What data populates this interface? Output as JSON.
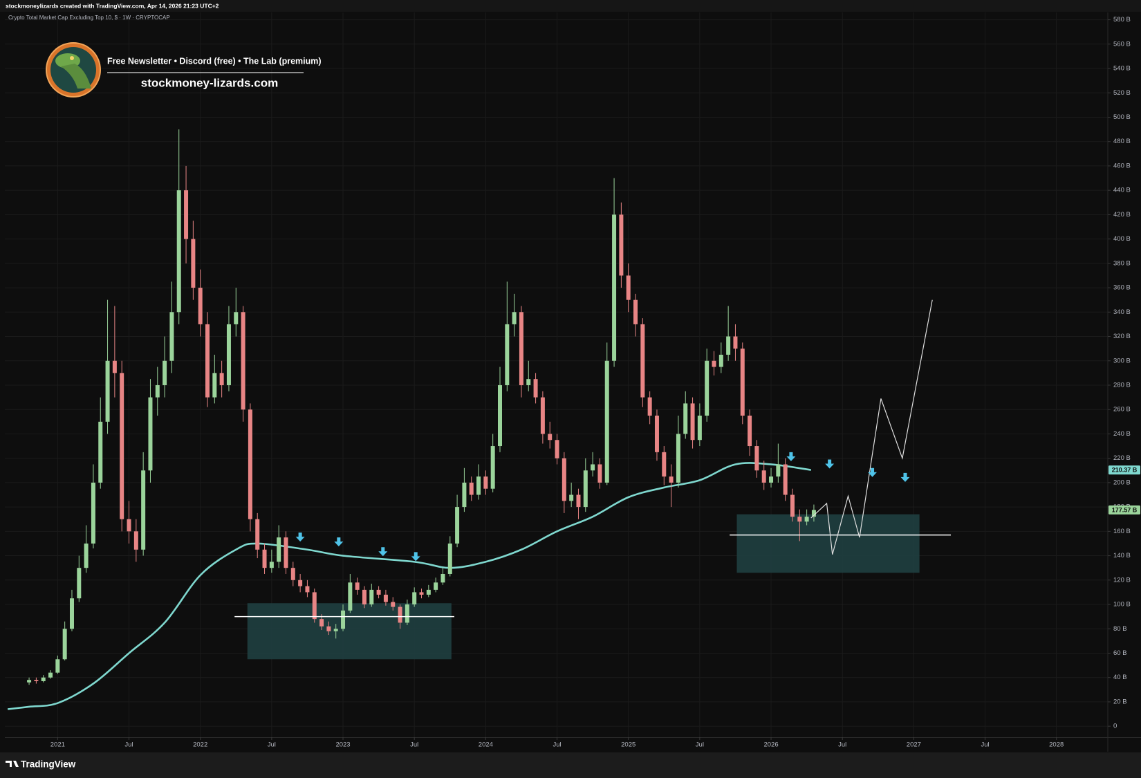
{
  "header": "stockmoneylizards created with TradingView.com, Apr 14, 2026 21:23 UTC+2",
  "banner": {
    "tagline": "Free Newsletter • Discord (free) • The Lab (premium)",
    "site": "stockmoney-lizards.com"
  },
  "footer": "TradingView",
  "chart_data": {
    "type": "candlestick",
    "title": "Crypto Total Market Cap Excluding Top 10, $ · 1W · CRYPTOCAP",
    "up_color": "#9bd49b",
    "down_color": "#e88585",
    "grid": true,
    "xlim": [
      2020.63,
      2028.36
    ],
    "ylim": [
      -9,
      586
    ],
    "xticks": [
      2021,
      {
        "value": 2021.5,
        "label": "Jul"
      },
      2022,
      {
        "value": 2022.5,
        "label": "Jul"
      },
      2023,
      {
        "value": 2023.5,
        "label": "Jul"
      },
      2024,
      {
        "value": 2024.5,
        "label": "Jul"
      },
      2025,
      {
        "value": 2025.5,
        "label": "Jul"
      },
      2026,
      {
        "value": 2026.5,
        "label": "Jul"
      },
      2027,
      {
        "value": 2027.5,
        "label": "Jul"
      },
      2028
    ],
    "yticks": [
      0,
      {
        "value": 20,
        "label": "20 B"
      },
      {
        "value": 40,
        "label": "40 B"
      },
      {
        "value": 60,
        "label": "60 B"
      },
      {
        "value": 80,
        "label": "80 B"
      },
      {
        "value": 100,
        "label": "100 B"
      },
      {
        "value": 120,
        "label": "120 B"
      },
      {
        "value": 140,
        "label": "140 B"
      },
      {
        "value": 160,
        "label": "160 B"
      },
      {
        "value": 180,
        "label": "180 B"
      },
      {
        "value": 200,
        "label": "200 B"
      },
      {
        "value": 220,
        "label": "220 B"
      },
      {
        "value": 240,
        "label": "240 B"
      },
      {
        "value": 260,
        "label": "260 B"
      },
      {
        "value": 280,
        "label": "280 B"
      },
      {
        "value": 300,
        "label": "300 B"
      },
      {
        "value": 320,
        "label": "320 B"
      },
      {
        "value": 340,
        "label": "340 B"
      },
      {
        "value": 360,
        "label": "360 B"
      },
      {
        "value": 380,
        "label": "380 B"
      },
      {
        "value": 400,
        "label": "400 B"
      },
      {
        "value": 420,
        "label": "420 B"
      },
      {
        "value": 440,
        "label": "440 B"
      },
      {
        "value": 460,
        "label": "460 B"
      },
      {
        "value": 480,
        "label": "480 B"
      },
      {
        "value": 500,
        "label": "500 B"
      },
      {
        "value": 520,
        "label": "520 B"
      },
      {
        "value": 540,
        "label": "540 B"
      },
      {
        "value": 560,
        "label": "560 B"
      },
      {
        "value": 580,
        "label": "580 B"
      }
    ],
    "x": [
      2020.8,
      2020.85,
      2020.9,
      2020.95,
      2021,
      2021.05,
      2021.1,
      2021.15,
      2021.2,
      2021.25,
      2021.3,
      2021.35,
      2021.4,
      2021.45,
      2021.5,
      2021.55,
      2021.6,
      2021.65,
      2021.7,
      2021.75,
      2021.8,
      2021.85,
      2021.9,
      2021.95,
      2022,
      2022.05,
      2022.1,
      2022.15,
      2022.2,
      2022.25,
      2022.3,
      2022.35,
      2022.4,
      2022.45,
      2022.5,
      2022.55,
      2022.6,
      2022.65,
      2022.7,
      2022.75,
      2022.8,
      2022.85,
      2022.9,
      2022.95,
      2023,
      2023.05,
      2023.1,
      2023.15,
      2023.2,
      2023.25,
      2023.3,
      2023.35,
      2023.4,
      2023.45,
      2023.5,
      2023.55,
      2023.6,
      2023.65,
      2023.7,
      2023.75,
      2023.8,
      2023.85,
      2023.9,
      2023.95,
      2024,
      2024.05,
      2024.1,
      2024.15,
      2024.2,
      2024.25,
      2024.3,
      2024.35,
      2024.4,
      2024.45,
      2024.5,
      2024.55,
      2024.6,
      2024.65,
      2024.7,
      2024.75,
      2024.8,
      2024.85,
      2024.9,
      2024.95,
      2025,
      2025.05,
      2025.1,
      2025.15,
      2025.2,
      2025.25,
      2025.3,
      2025.35,
      2025.4,
      2025.45,
      2025.5,
      2025.55,
      2025.6,
      2025.65,
      2025.7,
      2025.75,
      2025.8,
      2025.85,
      2025.9,
      2025.95,
      2026,
      2026.05,
      2026.1,
      2026.15,
      2026.2,
      2026.25,
      2026.3
    ],
    "open": [
      36,
      38,
      37,
      40,
      44,
      55,
      80,
      105,
      130,
      150,
      200,
      250,
      300,
      290,
      170,
      160,
      145,
      210,
      270,
      280,
      300,
      340,
      440,
      400,
      360,
      330,
      270,
      290,
      280,
      330,
      340,
      260,
      170,
      145,
      130,
      135,
      155,
      130,
      120,
      115,
      110,
      88,
      82,
      78,
      80,
      95,
      118,
      112,
      100,
      112,
      108,
      102,
      98,
      85,
      100,
      110,
      108,
      112,
      118,
      125,
      150,
      180,
      200,
      190,
      205,
      195,
      230,
      280,
      330,
      340,
      280,
      285,
      270,
      240,
      235,
      220,
      185,
      190,
      180,
      210,
      215,
      200,
      300,
      420,
      370,
      350,
      330,
      270,
      255,
      225,
      205,
      200,
      240,
      265,
      235,
      255,
      300,
      295,
      305,
      320,
      310,
      255,
      230,
      210,
      200,
      205,
      215,
      190,
      172,
      168,
      172
    ],
    "high": [
      40,
      40,
      42,
      46,
      58,
      86,
      112,
      140,
      165,
      215,
      270,
      350,
      345,
      300,
      185,
      170,
      225,
      285,
      295,
      320,
      365,
      490,
      460,
      415,
      375,
      340,
      305,
      300,
      345,
      360,
      345,
      265,
      175,
      150,
      145,
      165,
      160,
      135,
      125,
      120,
      113,
      92,
      86,
      84,
      100,
      125,
      122,
      115,
      117,
      115,
      112,
      106,
      100,
      104,
      114,
      113,
      116,
      122,
      130,
      156,
      190,
      212,
      205,
      215,
      210,
      240,
      295,
      365,
      355,
      345,
      300,
      290,
      275,
      250,
      240,
      225,
      200,
      195,
      220,
      225,
      220,
      315,
      450,
      430,
      380,
      355,
      335,
      275,
      260,
      230,
      215,
      255,
      275,
      270,
      265,
      310,
      308,
      315,
      345,
      330,
      315,
      260,
      235,
      218,
      212,
      232,
      220,
      195,
      178,
      178,
      182
    ],
    "low": [
      34,
      35,
      36,
      39,
      43,
      54,
      78,
      102,
      126,
      146,
      195,
      240,
      270,
      160,
      150,
      135,
      140,
      200,
      255,
      270,
      290,
      330,
      380,
      350,
      320,
      262,
      265,
      270,
      275,
      320,
      250,
      160,
      138,
      125,
      126,
      130,
      125,
      115,
      110,
      106,
      85,
      79,
      75,
      72,
      78,
      93,
      108,
      97,
      98,
      105,
      99,
      95,
      80,
      83,
      98,
      105,
      106,
      110,
      116,
      123,
      147,
      176,
      185,
      186,
      190,
      192,
      225,
      275,
      320,
      270,
      275,
      265,
      232,
      228,
      215,
      175,
      180,
      170,
      176,
      205,
      195,
      198,
      295,
      360,
      340,
      320,
      262,
      248,
      218,
      198,
      180,
      196,
      236,
      228,
      230,
      250,
      288,
      290,
      300,
      300,
      248,
      222,
      204,
      194,
      196,
      200,
      185,
      168,
      152,
      165,
      168
    ],
    "close": [
      38,
      37,
      40,
      44,
      55,
      80,
      105,
      130,
      150,
      200,
      250,
      300,
      290,
      170,
      160,
      145,
      210,
      270,
      280,
      300,
      340,
      440,
      400,
      360,
      330,
      270,
      290,
      280,
      330,
      340,
      260,
      170,
      145,
      130,
      135,
      155,
      130,
      120,
      115,
      110,
      88,
      82,
      78,
      80,
      95,
      118,
      112,
      100,
      112,
      108,
      102,
      98,
      85,
      100,
      110,
      108,
      112,
      118,
      125,
      150,
      180,
      200,
      190,
      205,
      195,
      230,
      280,
      330,
      340,
      280,
      285,
      270,
      240,
      235,
      220,
      185,
      190,
      180,
      210,
      215,
      200,
      300,
      420,
      370,
      350,
      330,
      270,
      255,
      225,
      205,
      200,
      240,
      265,
      235,
      255,
      300,
      295,
      305,
      320,
      310,
      255,
      230,
      210,
      200,
      205,
      215,
      190,
      172,
      168,
      172,
      177.57
    ],
    "last_label": "177.57 B",
    "ma": {
      "color": "#7fd8cf",
      "x": [
        2020.65,
        2020.8,
        2021.0,
        2021.25,
        2021.5,
        2021.75,
        2022.0,
        2022.25,
        2022.4,
        2022.75,
        2023.0,
        2023.5,
        2023.75,
        2024.0,
        2024.25,
        2024.5,
        2024.75,
        2025.0,
        2025.25,
        2025.5,
        2025.75,
        2026.0,
        2026.28
      ],
      "values": [
        14,
        16,
        19,
        35,
        60,
        85,
        124,
        145,
        150,
        145,
        140,
        135,
        130,
        135,
        145,
        160,
        172,
        188,
        196,
        202,
        215,
        215,
        210.37
      ],
      "last_label": "210.37 B"
    },
    "zone_color": "#1f3d3e",
    "zones": [
      {
        "x": [
          2022.33,
          2023.76
        ],
        "y": [
          55,
          101
        ]
      },
      {
        "x": [
          2025.76,
          2027.04
        ],
        "y": [
          126,
          174
        ]
      }
    ],
    "level_color": "#ffffff",
    "levels": [
      {
        "x": [
          2022.24,
          2023.78
        ],
        "y": 90
      },
      {
        "x": [
          2025.71,
          2027.26
        ],
        "y": 157
      }
    ],
    "arrow_color": "#4fc3e8",
    "arrows": {
      "x": [
        2022.7,
        2022.97,
        2023.28,
        2023.51,
        2026.14,
        2026.41,
        2026.71,
        2026.94
      ],
      "y": [
        155,
        151,
        143,
        139,
        221,
        215,
        208,
        204
      ]
    },
    "projection": {
      "color": "#e0e0e0",
      "x": [
        2026.28,
        2026.39,
        2026.43,
        2026.54,
        2026.62,
        2026.77,
        2026.92,
        2027.13
      ],
      "y": [
        171,
        183,
        141,
        189,
        155,
        269,
        220,
        350
      ]
    }
  }
}
